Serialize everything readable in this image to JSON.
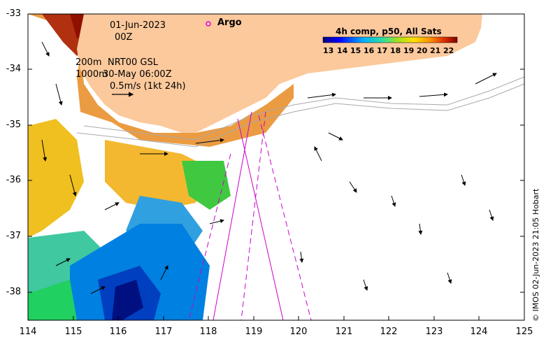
{
  "map": {
    "date": "01-Jun-2023",
    "time": "00Z",
    "depth_line1": "200m",
    "depth_line2": "1000m",
    "altimetry_label": "NRT00 GSL",
    "altimetry_date": "30-May 06:00Z",
    "velocity_scale_label": "0.5m/s (1kt 24h)",
    "argo_label": "Argo",
    "colorbar_title": "4h comp, p50, All Sats",
    "colorbar_ticks": [
      "13",
      "14",
      "15",
      "16",
      "17",
      "18",
      "19",
      "20",
      "21",
      "22"
    ],
    "credit": "© IMOS 02-Jun-2023 21:05 Hobart",
    "y_ticks": [
      "-33",
      "-34",
      "-35",
      "-36",
      "-37",
      "-38"
    ],
    "x_ticks": [
      "114",
      "115",
      "116",
      "117",
      "118",
      "119",
      "120",
      "121",
      "122",
      "123",
      "124",
      "125"
    ],
    "colors": {
      "land": "#fcc99c",
      "argo": "#e000e0",
      "track": "#cc00cc",
      "contour": "#aaaaaa"
    }
  }
}
